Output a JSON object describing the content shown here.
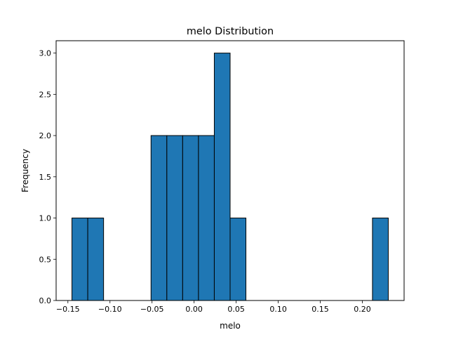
{
  "chart_data": {
    "type": "bar",
    "title": "melo Distribution",
    "xlabel": "melo",
    "ylabel": "Frequency",
    "bin_edges": [
      -0.1452,
      -0.1264,
      -0.1076,
      -0.0888,
      -0.07,
      -0.0512,
      -0.0324,
      -0.0136,
      0.0052,
      0.024,
      0.0428,
      0.0616,
      0.0804,
      0.0992,
      0.118,
      0.1368,
      0.1556,
      0.1744,
      0.1932,
      0.212,
      0.2308
    ],
    "counts": [
      1,
      1,
      0,
      0,
      0,
      2,
      2,
      2,
      2,
      3,
      1,
      0,
      0,
      0,
      0,
      0,
      0,
      0,
      0,
      1
    ],
    "xlim": [
      -0.164,
      0.2496
    ],
    "ylim": [
      0,
      3.15
    ],
    "x_ticks": [
      -0.15,
      -0.1,
      -0.05,
      0.0,
      0.05,
      0.1,
      0.15,
      0.2
    ],
    "x_tick_labels": [
      "−0.15",
      "−0.10",
      "−0.05",
      "0.00",
      "0.05",
      "0.10",
      "0.15",
      "0.20"
    ],
    "y_ticks": [
      0.0,
      0.5,
      1.0,
      1.5,
      2.0,
      2.5,
      3.0
    ],
    "y_tick_labels": [
      "0.0",
      "0.5",
      "1.0",
      "1.5",
      "2.0",
      "2.5",
      "3.0"
    ],
    "grid": false,
    "legend": "none",
    "bar_color": "#1f77b4",
    "edge_color": "#000000"
  }
}
